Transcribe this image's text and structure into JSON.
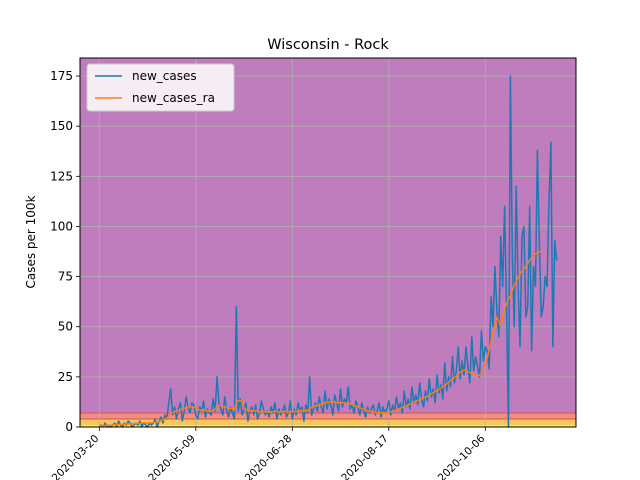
{
  "chart_data": {
    "type": "line",
    "title": "Wisconsin - Rock",
    "xlabel": "",
    "ylabel": "Cases per 100k",
    "ylim": [
      0,
      184
    ],
    "grid": true,
    "legend_placement": "top-left",
    "y_ticks": [
      0,
      25,
      50,
      75,
      100,
      125,
      150,
      175
    ],
    "x_tick_labels": [
      "2020-03-20",
      "2020-05-09",
      "2020-06-28",
      "2020-08-17",
      "2020-10-06"
    ],
    "x_tick_days": [
      0,
      50,
      100,
      150,
      200
    ],
    "x_range_days": [
      -10,
      247
    ],
    "bands": [
      {
        "from": 0,
        "to": 1,
        "color": "#f8e46c"
      },
      {
        "from": 1,
        "to": 4,
        "color": "#f6c85a"
      },
      {
        "from": 4,
        "to": 7,
        "color": "#ef8e82"
      },
      {
        "from": 7,
        "to": 184,
        "color": "#bf7dbd"
      }
    ],
    "band_boundary_color": "#d9534f",
    "series": [
      {
        "name": "new_cases",
        "color": "#1f77b4",
        "x_start_day": 0,
        "values": [
          0,
          1,
          0,
          2,
          0,
          1,
          0,
          1,
          2,
          0,
          3,
          1,
          0,
          2,
          1,
          3,
          2,
          0,
          1,
          2,
          1,
          3,
          0,
          2,
          1,
          0,
          2,
          1,
          2,
          4,
          0,
          3,
          5,
          2,
          6,
          4,
          12,
          19,
          6,
          10,
          4,
          9,
          12,
          3,
          8,
          15,
          10,
          7,
          12,
          11,
          6,
          4,
          10,
          8,
          13,
          5,
          9,
          7,
          6,
          14,
          8,
          25,
          12,
          9,
          6,
          15,
          8,
          5,
          10,
          7,
          4,
          60,
          8,
          14,
          6,
          9,
          12,
          3,
          8,
          10,
          6,
          11,
          4,
          7,
          13,
          9,
          6,
          8,
          5,
          10,
          7,
          12,
          4,
          9,
          6,
          8,
          11,
          5,
          7,
          13,
          4,
          9,
          6,
          12,
          8,
          10,
          3,
          11,
          7,
          25,
          6,
          9,
          12,
          8,
          15,
          10,
          7,
          18,
          9,
          14,
          11,
          6,
          16,
          12,
          8,
          19,
          10,
          14,
          12,
          20,
          9,
          11,
          7,
          13,
          10,
          6,
          12,
          8,
          5,
          10,
          7,
          9,
          11,
          6,
          8,
          12,
          5,
          10,
          7,
          9,
          13,
          6,
          11,
          8,
          15,
          9,
          12,
          7,
          18,
          10,
          14,
          9,
          20,
          12,
          16,
          11,
          22,
          14,
          10,
          18,
          13,
          24,
          15,
          19,
          12,
          26,
          17,
          21,
          14,
          32,
          18,
          25,
          20,
          35,
          22,
          28,
          40,
          24,
          33,
          26,
          40,
          30,
          22,
          45,
          28,
          35,
          30,
          25,
          48,
          33,
          40,
          38,
          29,
          65,
          50,
          80,
          58,
          45,
          95,
          70,
          110,
          60,
          0,
          175,
          85,
          50,
          120,
          70,
          40,
          95,
          100,
          55,
          60,
          110,
          38,
          80,
          70,
          138,
          92,
          55,
          60,
          75,
          70,
          112,
          142,
          40,
          93,
          83
        ]
      },
      {
        "name": "new_cases_ra",
        "color": "#ff7f0e",
        "x_start_day": 0,
        "values": [
          0,
          0.5,
          0.6,
          0.8,
          0.7,
          0.8,
          0.9,
          1,
          1.2,
          1.1,
          1.3,
          1.2,
          1.3,
          1.4,
          1.5,
          1.6,
          1.5,
          1.6,
          1.7,
          1.8,
          1.8,
          1.9,
          2,
          2.1,
          2,
          1.9,
          2,
          2.1,
          2.2,
          2.4,
          2.5,
          2.8,
          3.2,
          3.4,
          3.9,
          4.4,
          5.5,
          6.8,
          7.2,
          7.9,
          7.6,
          8.1,
          8.9,
          8.7,
          9.2,
          9.8,
          10,
          10.3,
          10.1,
          9.8,
          9.5,
          9.1,
          8.6,
          8.4,
          8.9,
          8.3,
          8.1,
          7.9,
          7.8,
          8.5,
          8.7,
          10.5,
          10.9,
          10.4,
          9.8,
          10.2,
          9.6,
          9.1,
          9.4,
          9.2,
          8.5,
          12.5,
          12.9,
          13.1,
          12.7,
          9.1,
          8.9,
          8.2,
          8.1,
          8.3,
          7.9,
          8.2,
          7.8,
          7.4,
          7.7,
          7.9,
          7.5,
          7.6,
          7.3,
          7.6,
          7.7,
          8,
          7.6,
          7.5,
          7.4,
          7.6,
          7.9,
          7.5,
          7.3,
          7.8,
          7.5,
          7.8,
          7.6,
          8,
          8.3,
          8.2,
          7.8,
          8.4,
          8.1,
          9.5,
          9.8,
          10.2,
          10.6,
          10.5,
          11.2,
          11.4,
          11.6,
          12.3,
          12.1,
          12.4,
          12.6,
          12.3,
          12.6,
          12.2,
          11.9,
          12.4,
          12.1,
          12,
          11.8,
          12.1,
          11.5,
          11.2,
          10.6,
          10.4,
          10.1,
          9.5,
          9.3,
          8.9,
          8.4,
          8.1,
          7.9,
          7.6,
          7.5,
          7.2,
          7.1,
          7.3,
          7,
          7.2,
          7.1,
          7.3,
          7.6,
          7.5,
          7.8,
          8.1,
          8.6,
          9,
          9.4,
          9.7,
          10.3,
          10.6,
          11.1,
          11.4,
          11.9,
          12.4,
          12.8,
          13.3,
          13.6,
          14.1,
          14.5,
          15,
          15.4,
          15.9,
          16.5,
          17.1,
          17.6,
          18.2,
          18.9,
          19.5,
          20.1,
          20.8,
          21.5,
          22.3,
          23.1,
          23.9,
          24.7,
          25.6,
          26.4,
          27.3,
          28,
          28.4,
          28.1,
          27.6,
          27.2,
          26.8,
          26.4,
          25.9,
          25.4,
          25.8,
          26.9,
          28.5,
          31.2,
          34.6,
          38.4,
          43,
          47.5,
          51.2,
          54.8,
          52.6,
          50.1,
          55.3,
          58.7,
          61.4,
          63.8,
          65.5,
          68.2,
          70.6,
          72.4,
          74.8,
          76.3,
          77.6,
          78.9,
          80.2,
          81.6,
          83.1,
          84.3,
          85.5,
          86.2,
          86.8,
          87.3,
          87.9
        ]
      }
    ]
  }
}
